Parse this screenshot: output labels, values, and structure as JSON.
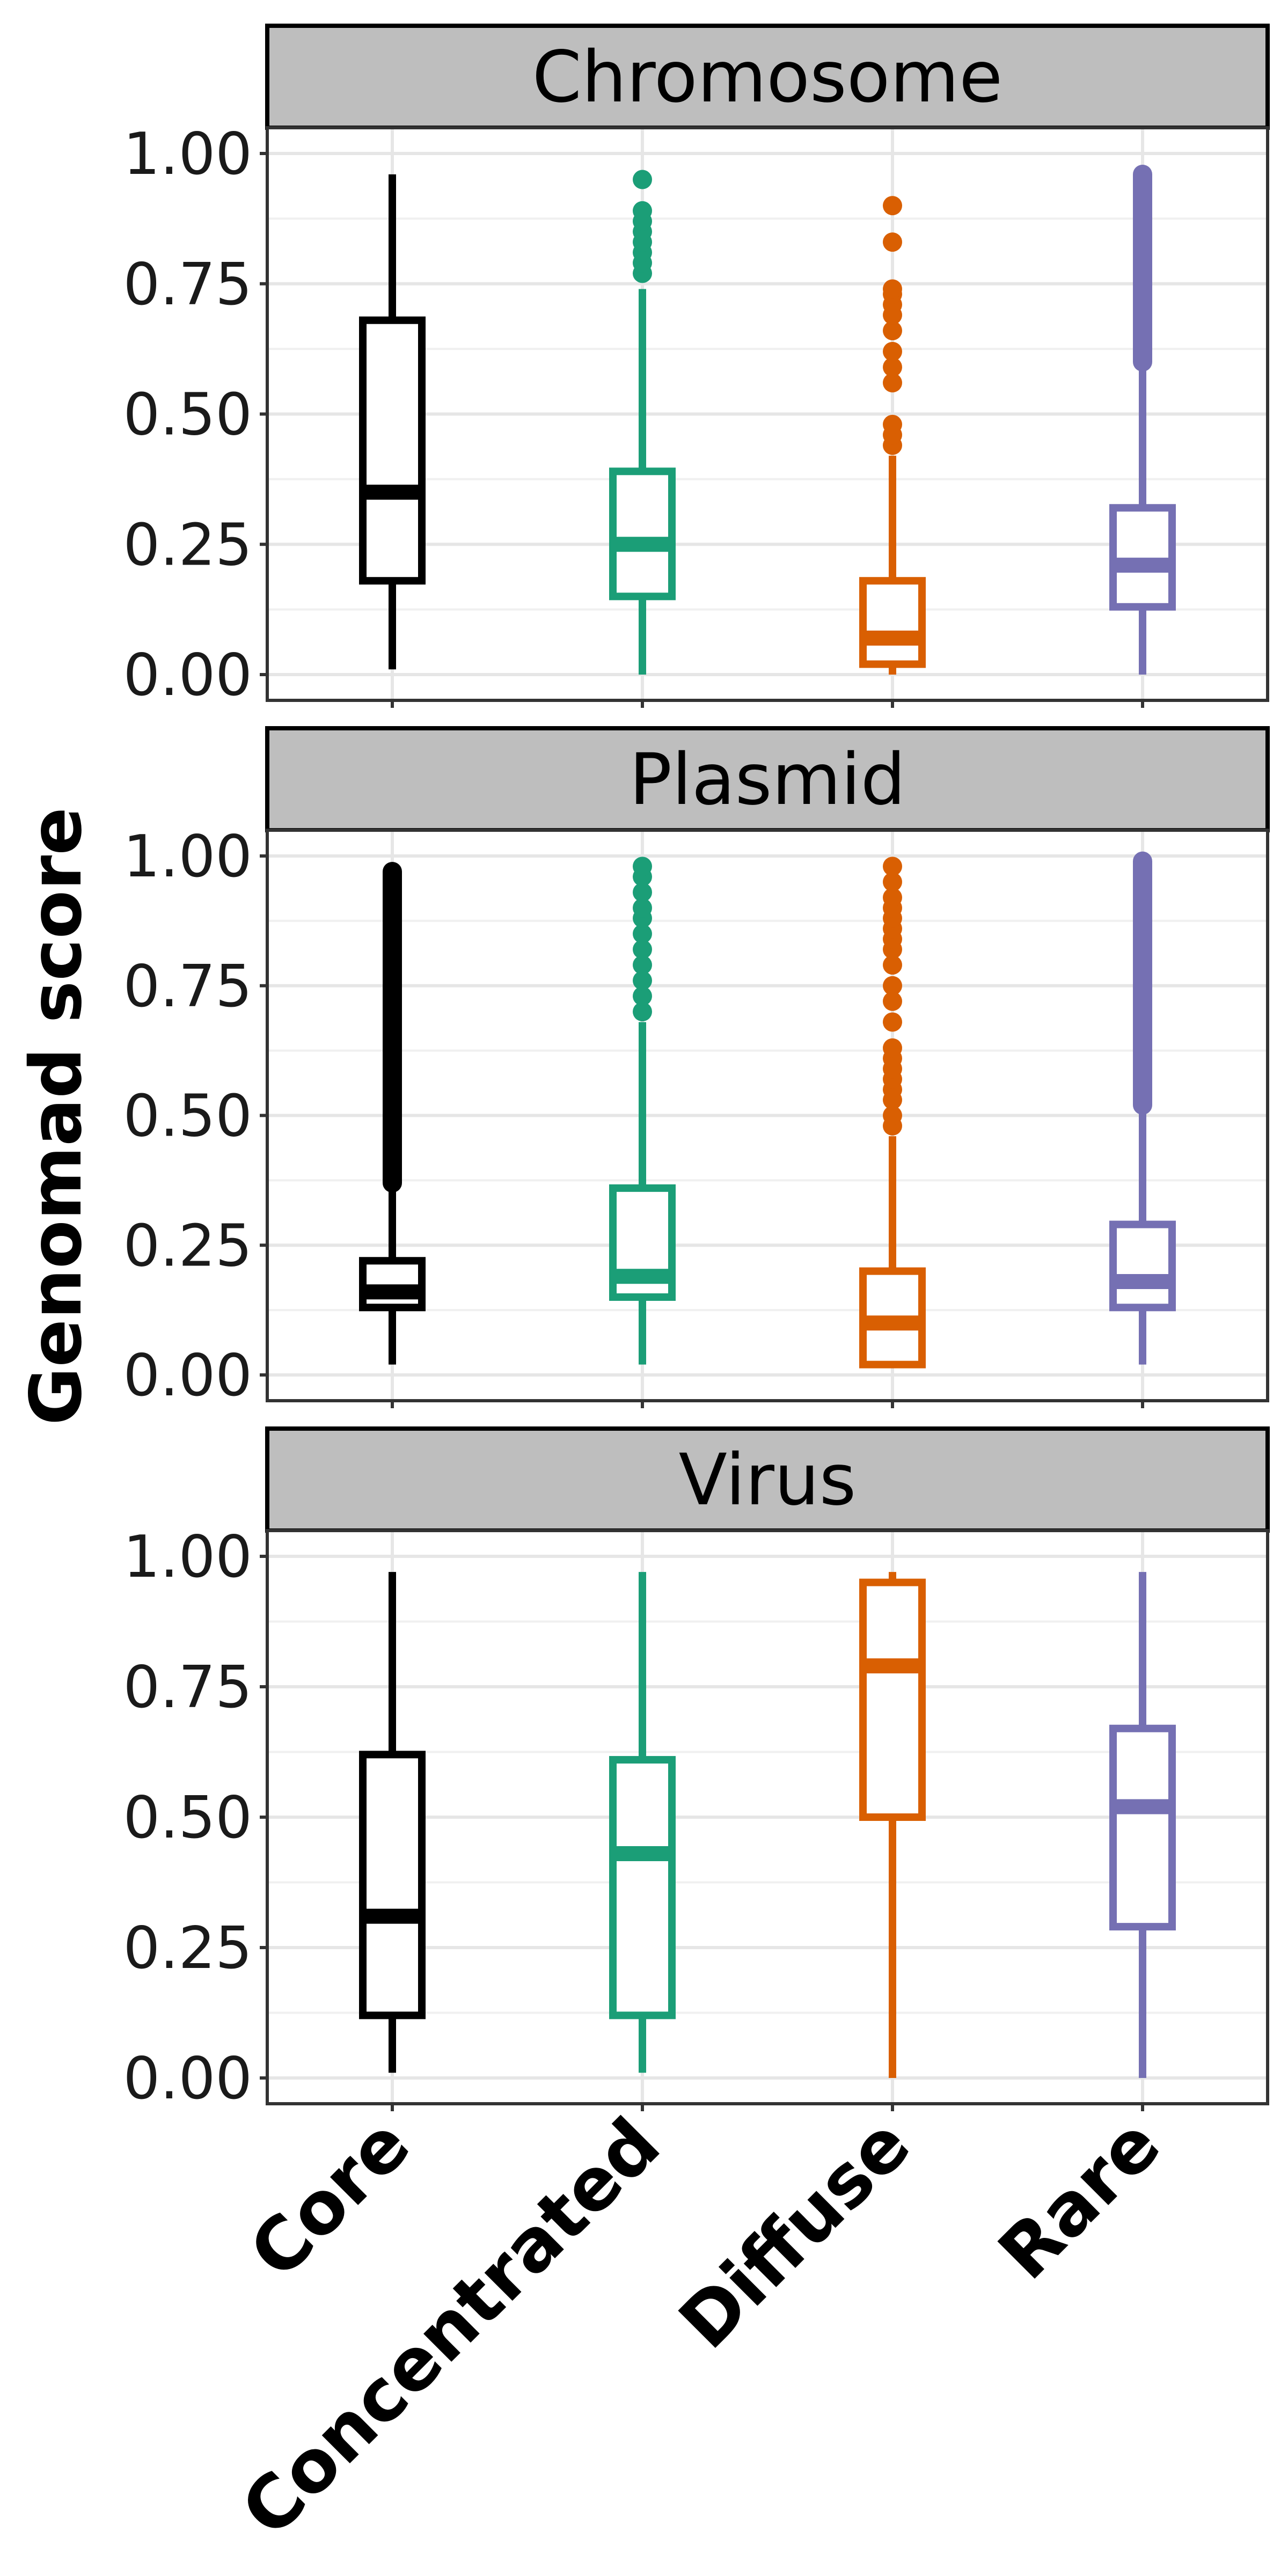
{
  "chart_data": {
    "type": "box",
    "ylabel": "Genomad score",
    "xlabel": "",
    "categories": [
      "Core",
      "Concentrated",
      "Diffuse",
      "Rare"
    ],
    "colors": {
      "Core": "#000000",
      "Concentrated": "#1b9e77",
      "Diffuse": "#d95f02",
      "Rare": "#7570b3"
    },
    "ylim": [
      0,
      1
    ],
    "yticks": [
      "0.00",
      "0.25",
      "0.50",
      "0.75",
      "1.00"
    ],
    "grid": true,
    "panels": [
      {
        "title": "Chromosome",
        "boxes": [
          {
            "category": "Core",
            "min": 0.01,
            "q1": 0.18,
            "median": 0.35,
            "q3": 0.68,
            "max": 0.96,
            "outliers": []
          },
          {
            "category": "Concentrated",
            "min": 0.0,
            "q1": 0.15,
            "median": 0.25,
            "q3": 0.39,
            "max": 0.74,
            "outliers": [
              0.77,
              0.79,
              0.81,
              0.83,
              0.85,
              0.87,
              0.89,
              0.95
            ]
          },
          {
            "category": "Diffuse",
            "min": 0.0,
            "q1": 0.02,
            "median": 0.07,
            "q3": 0.18,
            "max": 0.42,
            "outliers": [
              0.44,
              0.46,
              0.48,
              0.56,
              0.59,
              0.62,
              0.66,
              0.69,
              0.71,
              0.73,
              0.74,
              0.83,
              0.9
            ]
          },
          {
            "category": "Rare",
            "min": 0.0,
            "q1": 0.13,
            "median": 0.21,
            "q3": 0.32,
            "max": 0.6,
            "outliers_range": [
              0.6,
              0.96
            ]
          }
        ]
      },
      {
        "title": "Plasmid",
        "boxes": [
          {
            "category": "Core",
            "min": 0.02,
            "q1": 0.13,
            "median": 0.16,
            "q3": 0.22,
            "max": 0.36,
            "outliers_range": [
              0.37,
              0.97
            ]
          },
          {
            "category": "Concentrated",
            "min": 0.02,
            "q1": 0.15,
            "median": 0.19,
            "q3": 0.36,
            "max": 0.68,
            "outliers": [
              0.7,
              0.73,
              0.76,
              0.79,
              0.82,
              0.85,
              0.88,
              0.9,
              0.93,
              0.96,
              0.98
            ]
          },
          {
            "category": "Diffuse",
            "min": 0.02,
            "q1": 0.02,
            "median": 0.1,
            "q3": 0.2,
            "max": 0.46,
            "outliers": [
              0.48,
              0.5,
              0.53,
              0.55,
              0.57,
              0.59,
              0.61,
              0.63,
              0.68,
              0.72,
              0.75,
              0.79,
              0.82,
              0.84,
              0.86,
              0.88,
              0.9,
              0.92,
              0.95,
              0.98
            ]
          },
          {
            "category": "Rare",
            "min": 0.02,
            "q1": 0.13,
            "median": 0.18,
            "q3": 0.29,
            "max": 0.52,
            "outliers_range": [
              0.52,
              0.99
            ]
          }
        ]
      },
      {
        "title": "Virus",
        "boxes": [
          {
            "category": "Core",
            "min": 0.01,
            "q1": 0.12,
            "median": 0.31,
            "q3": 0.62,
            "max": 0.97,
            "outliers": []
          },
          {
            "category": "Concentrated",
            "min": 0.01,
            "q1": 0.12,
            "median": 0.43,
            "q3": 0.61,
            "max": 0.97,
            "outliers": []
          },
          {
            "category": "Diffuse",
            "min": 0.0,
            "q1": 0.5,
            "median": 0.79,
            "q3": 0.95,
            "max": 0.97,
            "outliers": []
          },
          {
            "category": "Rare",
            "min": 0.0,
            "q1": 0.29,
            "median": 0.52,
            "q3": 0.67,
            "max": 0.97,
            "outliers": []
          }
        ]
      }
    ]
  }
}
